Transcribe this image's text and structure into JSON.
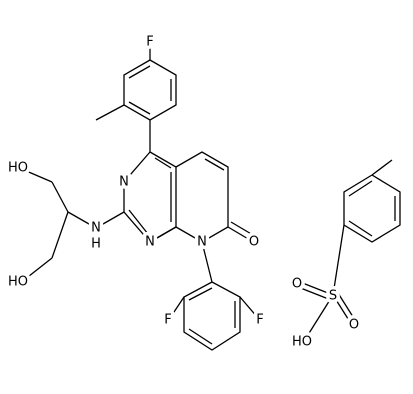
{
  "atoms": [
    {
      "label": "F"
    },
    {
      "label": "N"
    },
    {
      "label": "N"
    },
    {
      "label": "N"
    },
    {
      "label": "O"
    },
    {
      "label": "N"
    },
    {
      "label": "H"
    },
    {
      "label": "HO"
    },
    {
      "label": "HO"
    },
    {
      "label": "F"
    },
    {
      "label": "F"
    },
    {
      "label": "S"
    },
    {
      "label": "O"
    },
    {
      "label": "O"
    },
    {
      "label": "HO"
    }
  ]
}
